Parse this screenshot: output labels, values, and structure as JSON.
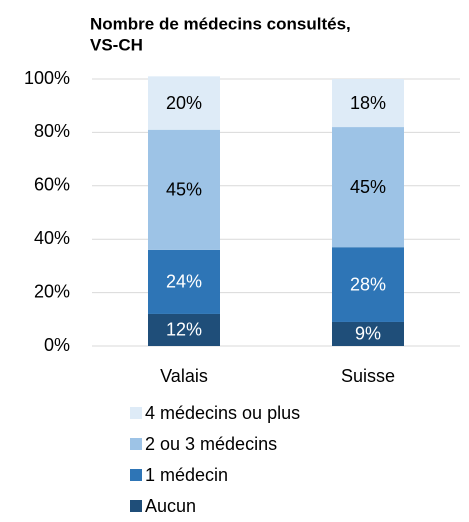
{
  "chart_data": {
    "type": "stacked_bar",
    "title": [
      "Nombre de médecins consultés,",
      "VS-CH"
    ],
    "categories": [
      "Valais",
      "Suisse"
    ],
    "series": [
      {
        "name": "Aucun",
        "color": "#1f4e79",
        "values": [
          12,
          9
        ],
        "value_labels": [
          "12%",
          "9%"
        ]
      },
      {
        "name": "1 médecin",
        "color": "#2e75b6",
        "values": [
          24,
          28
        ],
        "value_labels": [
          "24%",
          "28%"
        ]
      },
      {
        "name": "2 ou 3 médecins",
        "color": "#9dc3e6",
        "values": [
          45,
          45
        ],
        "value_labels": [
          "45%",
          "45%"
        ]
      },
      {
        "name": "4 médecins ou plus",
        "color": "#deebf7",
        "values": [
          20,
          18
        ],
        "value_labels": [
          "20%",
          "18%"
        ]
      }
    ],
    "ylim": [
      0,
      100
    ],
    "yticks": [
      {
        "value": 0,
        "label": "0%"
      },
      {
        "value": 20,
        "label": "20%"
      },
      {
        "value": 40,
        "label": "40%"
      },
      {
        "value": 60,
        "label": "60%"
      },
      {
        "value": 80,
        "label": "80%"
      },
      {
        "value": 100,
        "label": "100%"
      }
    ],
    "grid": true
  }
}
